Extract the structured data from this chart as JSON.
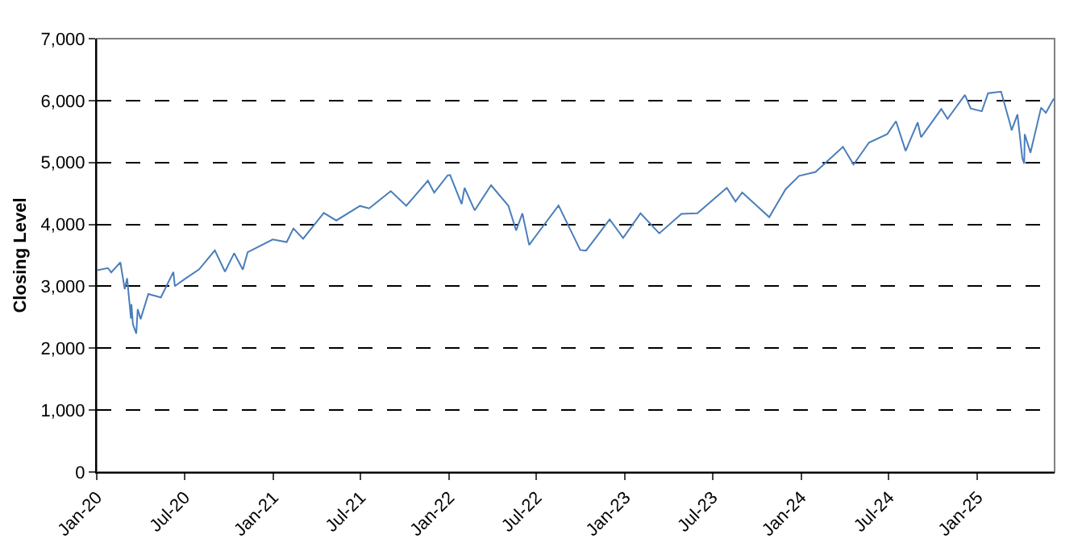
{
  "chart_data": {
    "type": "line",
    "ylabel": "Closing Level",
    "x": [
      "2020-01-02",
      "2020-01-24",
      "2020-01-31",
      "2020-02-19",
      "2020-02-28",
      "2020-03-04",
      "2020-03-12",
      "2020-03-13",
      "2020-03-16",
      "2020-03-23",
      "2020-03-26",
      "2020-04-01",
      "2020-04-17",
      "2020-05-13",
      "2020-06-08",
      "2020-06-11",
      "2020-07-01",
      "2020-07-31",
      "2020-09-02",
      "2020-09-23",
      "2020-10-12",
      "2020-10-30",
      "2020-11-09",
      "2020-12-31",
      "2021-01-29",
      "2021-02-12",
      "2021-03-04",
      "2021-04-16",
      "2021-05-12",
      "2021-06-30",
      "2021-07-19",
      "2021-09-02",
      "2021-10-04",
      "2021-11-18",
      "2021-12-01",
      "2021-12-29",
      "2022-01-03",
      "2022-01-27",
      "2022-02-02",
      "2022-02-23",
      "2022-03-29",
      "2022-05-04",
      "2022-05-20",
      "2022-06-02",
      "2022-06-16",
      "2022-07-08",
      "2022-08-16",
      "2022-09-30",
      "2022-10-12",
      "2022-11-30",
      "2022-12-28",
      "2023-02-02",
      "2023-03-13",
      "2023-04-28",
      "2023-05-31",
      "2023-07-31",
      "2023-08-18",
      "2023-09-01",
      "2023-10-27",
      "2023-11-30",
      "2023-12-28",
      "2024-01-31",
      "2024-03-28",
      "2024-04-19",
      "2024-05-21",
      "2024-06-28",
      "2024-07-16",
      "2024-08-05",
      "2024-08-30",
      "2024-09-06",
      "2024-10-18",
      "2024-10-31",
      "2024-12-06",
      "2024-12-18",
      "2025-01-10",
      "2025-01-23",
      "2025-02-19",
      "2025-03-10",
      "2025-03-13",
      "2025-03-25",
      "2025-04-04",
      "2025-04-08",
      "2025-04-09",
      "2025-04-21",
      "2025-05-13",
      "2025-05-23",
      "2025-06-06",
      "2025-06-10"
    ],
    "series": [
      {
        "color": "#4a7ebb",
        "values": [
          3258,
          3295,
          3225,
          3386,
          2954,
          3130,
          2481,
          2711,
          2386,
          2237,
          2630,
          2470,
          2875,
          2820,
          3232,
          3002,
          3115,
          3271,
          3580,
          3237,
          3535,
          3270,
          3550,
          3756,
          3714,
          3934,
          3768,
          4185,
          4063,
          4298,
          4258,
          4537,
          4300,
          4705,
          4513,
          4793,
          4797,
          4327,
          4590,
          4226,
          4632,
          4300,
          3901,
          4177,
          3667,
          3900,
          4305,
          3586,
          3577,
          4080,
          3783,
          4179,
          3855,
          4169,
          4180,
          4589,
          4370,
          4516,
          4117,
          4568,
          4783,
          4846,
          5254,
          4967,
          5321,
          5460,
          5667,
          5186,
          5648,
          5408,
          5864,
          5705,
          6090,
          5872,
          5827,
          6118,
          6144,
          5614,
          5521,
          5776,
          5074,
          4982,
          5457,
          5158,
          5886,
          5802,
          6000,
          6038
        ]
      }
    ],
    "xlim": [
      "2020-01-01",
      "2025-06-10"
    ],
    "xticks": [
      {
        "value": "2020-01-01",
        "label": "Jan-20"
      },
      {
        "value": "2020-07-01",
        "label": "Jul-20"
      },
      {
        "value": "2021-01-01",
        "label": "Jan-21"
      },
      {
        "value": "2021-07-01",
        "label": "Jul-21"
      },
      {
        "value": "2022-01-01",
        "label": "Jan-22"
      },
      {
        "value": "2022-07-01",
        "label": "Jul-22"
      },
      {
        "value": "2023-01-01",
        "label": "Jan-23"
      },
      {
        "value": "2023-07-01",
        "label": "Jul-23"
      },
      {
        "value": "2024-01-01",
        "label": "Jan-24"
      },
      {
        "value": "2024-07-01",
        "label": "Jul-24"
      },
      {
        "value": "2025-01-01",
        "label": "Jan-25"
      }
    ],
    "ylim": [
      0,
      7000
    ],
    "yticks": [
      0,
      {
        "value": 1000,
        "label": "1,000"
      },
      {
        "value": 2000,
        "label": "2,000"
      },
      {
        "value": 3000,
        "label": "3,000"
      },
      {
        "value": 4000,
        "label": "4,000"
      },
      {
        "value": 5000,
        "label": "5,000"
      },
      {
        "value": 6000,
        "label": "6,000"
      },
      {
        "value": 7000,
        "label": "7,000"
      }
    ],
    "grid": "y",
    "marker": "none",
    "line_style": "solid"
  }
}
